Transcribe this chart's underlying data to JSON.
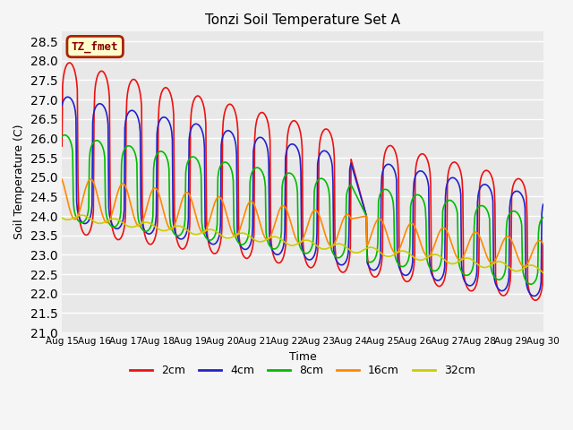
{
  "title": "Tonzi Soil Temperature Set A",
  "ylabel": "Soil Temperature (C)",
  "xlabel": "Time",
  "ylim": [
    21.0,
    28.75
  ],
  "yticks": [
    21.0,
    21.5,
    22.0,
    22.5,
    23.0,
    23.5,
    24.0,
    24.5,
    25.0,
    25.5,
    26.0,
    26.5,
    27.0,
    27.5,
    28.0,
    28.5
  ],
  "label_box_text": "TZ_fmet",
  "label_box_facecolor": "#ffffcc",
  "label_box_edgecolor": "#aa2200",
  "bg_color": "#e8e8e8",
  "fig_facecolor": "#f5f5f5",
  "lines": [
    {
      "label": "2cm",
      "color": "#ee1111",
      "lw": 1.2
    },
    {
      "label": "4cm",
      "color": "#2222cc",
      "lw": 1.2
    },
    {
      "label": "8cm",
      "color": "#00bb00",
      "lw": 1.2
    },
    {
      "label": "16cm",
      "color": "#ff8800",
      "lw": 1.2
    },
    {
      "label": "32cm",
      "color": "#cccc00",
      "lw": 1.2
    }
  ],
  "xtick_labels": [
    "Aug 15",
    "Aug 16",
    "Aug 17",
    "Aug 18",
    "Aug 19",
    "Aug 20",
    "Aug 21",
    "Aug 22",
    "Aug 23",
    "Aug 24",
    "Aug 25",
    "Aug 26",
    "Aug 27",
    "Aug 28",
    "Aug 29",
    "Aug 30"
  ],
  "n_days": 15,
  "samples_per_day": 48
}
